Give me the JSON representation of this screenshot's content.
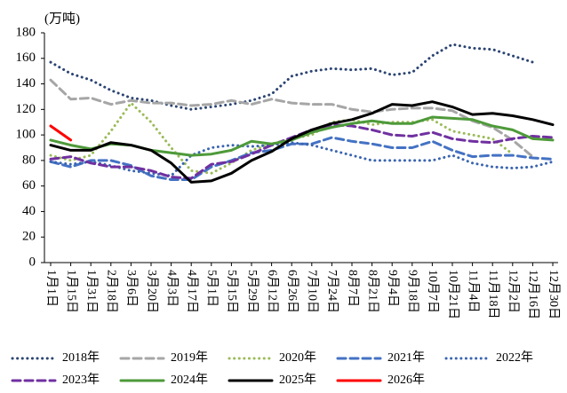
{
  "chart_data": {
    "type": "line",
    "y_label": "(万吨)",
    "categories": [
      "1月1日",
      "1月15日",
      "1月31日",
      "2月18日",
      "3月6日",
      "3月20日",
      "4月3日",
      "4月17日",
      "5月1日",
      "5月15日",
      "5月29日",
      "6月12日",
      "6月26日",
      "7月10日",
      "7月24日",
      "8月7日",
      "8月21日",
      "9月4日",
      "9月18日",
      "10月7日",
      "10月21日",
      "11月4日",
      "11月18日",
      "12月2日",
      "12月16日",
      "12月30日"
    ],
    "ylim": [
      0,
      180
    ],
    "yticks": [
      0,
      20,
      40,
      60,
      80,
      100,
      120,
      140,
      160,
      180
    ],
    "series": [
      {
        "name": "2018年",
        "color": "#2b4472",
        "style": "dotted",
        "values": [
          157,
          148,
          143,
          135,
          129,
          127,
          123,
          120,
          122,
          124,
          127,
          132,
          146,
          150,
          152,
          151,
          152,
          147,
          149,
          162,
          171,
          168,
          167,
          162,
          157,
          null
        ]
      },
      {
        "name": "2019年",
        "color": "#a6a6a6",
        "style": "dashed",
        "values": [
          143,
          128,
          129,
          124,
          127,
          125,
          125,
          123,
          124,
          127,
          124,
          128,
          125,
          124,
          124,
          120,
          118,
          120,
          121,
          121,
          119,
          111,
          106,
          96,
          83,
          null
        ]
      },
      {
        "name": "2020年",
        "color": "#9bbb59",
        "style": "dotted",
        "values": [
          84,
          80,
          84,
          103,
          125,
          110,
          90,
          72,
          70,
          78,
          88,
          93,
          97,
          100,
          110,
          112,
          108,
          110,
          110,
          112,
          103,
          100,
          97,
          85,
          null,
          null
        ]
      },
      {
        "name": "2021年",
        "color": "#4472c4",
        "style": "dashed",
        "values": [
          79,
          75,
          80,
          80,
          76,
          68,
          65,
          65,
          75,
          80,
          86,
          88,
          93,
          93,
          98,
          95,
          93,
          90,
          90,
          95,
          88,
          83,
          84,
          84,
          82,
          81
        ]
      },
      {
        "name": "2022年",
        "color": "#3a64b0",
        "style": "dotted",
        "values": [
          79,
          77,
          79,
          76,
          72,
          70,
          68,
          84,
          90,
          92,
          91,
          92,
          94,
          92,
          88,
          84,
          80,
          80,
          80,
          80,
          84,
          78,
          75,
          74,
          75,
          79
        ]
      },
      {
        "name": "2023年",
        "color": "#7030a0",
        "style": "dashed",
        "values": [
          81,
          83,
          78,
          75,
          75,
          72,
          67,
          66,
          77,
          79,
          85,
          92,
          98,
          104,
          108,
          107,
          104,
          100,
          99,
          102,
          97,
          95,
          94,
          97,
          99,
          98
        ]
      },
      {
        "name": "2024年",
        "color": "#4e9a3a",
        "style": "solid",
        "values": [
          96,
          92,
          89,
          93,
          92,
          88,
          86,
          84,
          85,
          88,
          95,
          93,
          96,
          102,
          106,
          109,
          111,
          109,
          109,
          114,
          113,
          112,
          107,
          104,
          97,
          96
        ]
      },
      {
        "name": "2025年",
        "color": "#000000",
        "style": "solid",
        "values": [
          92,
          88,
          88,
          94,
          92,
          88,
          78,
          63,
          64,
          70,
          80,
          87,
          97,
          104,
          109,
          112,
          117,
          124,
          123,
          126,
          122,
          116,
          117,
          115,
          112,
          108
        ]
      },
      {
        "name": "2026年",
        "color": "#ff0000",
        "style": "solid",
        "values": [
          107,
          96,
          null,
          null,
          null,
          null,
          null,
          null,
          null,
          null,
          null,
          null,
          null,
          null,
          null,
          null,
          null,
          null,
          null,
          null,
          null,
          null,
          null,
          null,
          null,
          null
        ]
      }
    ]
  }
}
